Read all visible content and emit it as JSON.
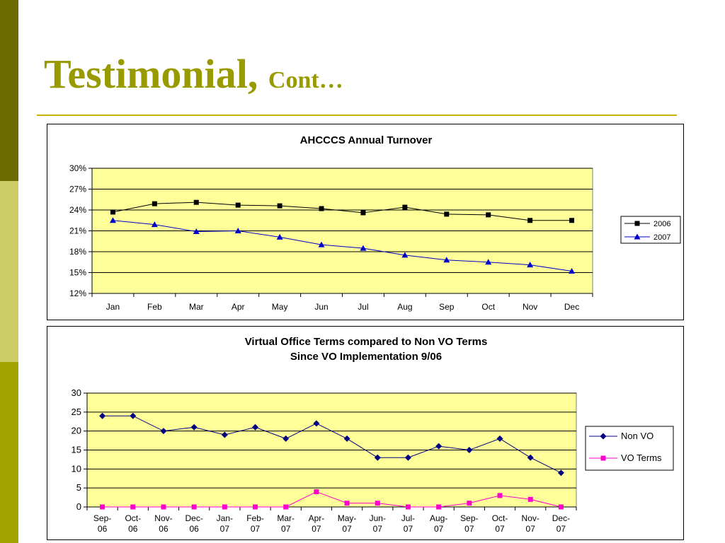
{
  "slide": {
    "title_main": "Testimonial,",
    "title_sub": "Cont…"
  },
  "colors": {
    "sidebar_dark": "#6b6b00",
    "sidebar_light": "#cccc66",
    "sidebar_mid": "#a3a300",
    "title": "#999900",
    "rule": "#c8b400",
    "plot_bg": "#ffff99"
  },
  "chart_data": [
    {
      "type": "line",
      "title": "AHCCCS Annual Turnover",
      "categories": [
        "Jan",
        "Feb",
        "Mar",
        "Apr",
        "May",
        "Jun",
        "Jul",
        "Aug",
        "Sep",
        "Oct",
        "Nov",
        "Dec"
      ],
      "ylim": [
        12,
        30
      ],
      "yticks": [
        12,
        15,
        18,
        21,
        24,
        27,
        30
      ],
      "ytick_labels": [
        "12%",
        "15%",
        "18%",
        "21%",
        "24%",
        "27%",
        "30%"
      ],
      "grid": true,
      "legend_position": "right",
      "series": [
        {
          "name": "2006",
          "color": "#000000",
          "marker": "square",
          "values": [
            23.7,
            24.9,
            25.1,
            24.7,
            24.6,
            24.2,
            23.6,
            24.4,
            23.4,
            23.3,
            22.5,
            22.5
          ]
        },
        {
          "name": "2007",
          "color": "#0000cc",
          "marker": "triangle",
          "values": [
            22.5,
            21.9,
            20.9,
            21.0,
            20.1,
            19.0,
            18.5,
            17.5,
            16.8,
            16.5,
            16.1,
            15.2
          ]
        }
      ]
    },
    {
      "type": "line",
      "title": "Virtual Office Terms compared to Non VO Terms",
      "subtitle": "Since VO Implementation 9/06",
      "categories": [
        [
          "Sep-",
          "06"
        ],
        [
          "Oct-",
          "06"
        ],
        [
          "Nov-",
          "06"
        ],
        [
          "Dec-",
          "06"
        ],
        [
          "Jan-",
          "07"
        ],
        [
          "Feb-",
          "07"
        ],
        [
          "Mar-",
          "07"
        ],
        [
          "Apr-",
          "07"
        ],
        [
          "May-",
          "07"
        ],
        [
          "Jun-",
          "07"
        ],
        [
          "Jul-",
          "07"
        ],
        [
          "Aug-",
          "07"
        ],
        [
          "Sep-",
          "07"
        ],
        [
          "Oct-",
          "07"
        ],
        [
          "Nov-",
          "07"
        ],
        [
          "Dec-",
          "07"
        ]
      ],
      "ylim": [
        0,
        30
      ],
      "yticks": [
        0,
        5,
        10,
        15,
        20,
        25,
        30
      ],
      "ytick_labels": [
        "0",
        "5",
        "10",
        "15",
        "20",
        "25",
        "30"
      ],
      "grid": true,
      "legend_position": "right",
      "series": [
        {
          "name": "Non VO",
          "color": "#000080",
          "marker": "diamond",
          "values": [
            24,
            24,
            20,
            21,
            19,
            21,
            18,
            22,
            18,
            13,
            13,
            16,
            15,
            18,
            13,
            9
          ]
        },
        {
          "name": "VO Terms",
          "color": "#ff00cc",
          "marker": "square",
          "values": [
            0,
            0,
            0,
            0,
            0,
            0,
            0,
            4,
            1,
            1,
            0,
            0,
            1,
            3,
            2,
            0
          ]
        }
      ]
    }
  ]
}
